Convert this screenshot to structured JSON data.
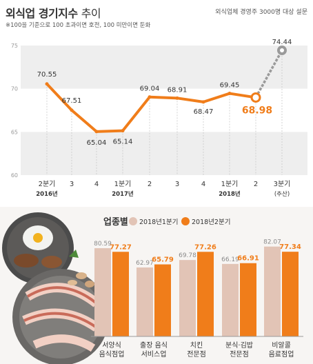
{
  "header": {
    "title_bold": "외식업 경기지수",
    "title_light": "추이",
    "source": "외식업체 경영주 3000명 대상 설문",
    "note": "※100을 기준으로 100 초과이면 호전, 100 미만이면 둔화"
  },
  "colors": {
    "orange": "#f07d1a",
    "beige": "#e2c4b6",
    "gray_dash": "#9a9a9a",
    "band": "#eeeeee"
  },
  "chart_data": [
    {
      "type": "line",
      "title": "외식업 경기지수 추이",
      "x_labels": [
        "2분기",
        "3",
        "4",
        "1분기",
        "2",
        "3",
        "4",
        "1분기",
        "2",
        "3분기"
      ],
      "x_sublabels": [
        "2016년",
        "",
        "",
        "2017년",
        "",
        "",
        "",
        "2018년",
        "",
        "(추산)"
      ],
      "values": [
        70.55,
        67.51,
        65.04,
        65.14,
        69.04,
        68.91,
        68.47,
        69.45,
        68.98,
        74.44
      ],
      "value_labels": [
        "70.55",
        "67.51",
        "65.04",
        "65.14",
        "69.04",
        "68.91",
        "68.47",
        "69.45",
        "68.98",
        "74.44"
      ],
      "projected_index": 9,
      "highlight_index": 8,
      "y_ticks": [
        "75",
        "70",
        "65",
        "60"
      ],
      "ylim": [
        60,
        75
      ]
    },
    {
      "type": "bar",
      "title": "업종별",
      "legend_position": "top",
      "categories": [
        "서양식\n음식점업",
        "출장 음식\n서비스업",
        "치킨\n전문점",
        "분식·김밥\n전문점",
        "비알콜\n음료점업"
      ],
      "series": [
        {
          "name": "2018년1분기",
          "values": [
            80.59,
            62.97,
            69.78,
            66.19,
            82.07
          ],
          "labels": [
            "80.59",
            "62.97",
            "69.78",
            "66.19",
            "82.07"
          ]
        },
        {
          "name": "2018년2분기",
          "values": [
            77.27,
            65.79,
            77.26,
            66.91,
            77.34
          ],
          "labels": [
            "77.27",
            "65.79",
            "77.26",
            "66.91",
            "77.34"
          ]
        }
      ]
    }
  ]
}
